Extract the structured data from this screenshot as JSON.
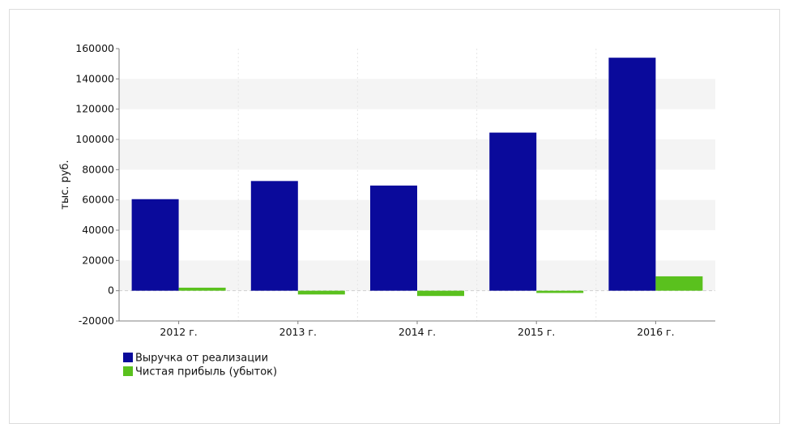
{
  "chart_data": {
    "type": "bar",
    "categories": [
      "2012 г.",
      "2013 г.",
      "2014 г.",
      "2015 г.",
      "2016 г."
    ],
    "series": [
      {
        "name": "Выручка от реализации",
        "values": [
          60500,
          72500,
          69500,
          104500,
          154000
        ],
        "color": "#0a0a9b"
      },
      {
        "name": "Чистая прибыль (убыток)",
        "values": [
          2000,
          -2500,
          -3500,
          -1500,
          9500
        ],
        "color": "#5ac11e"
      }
    ],
    "ylabel": "тыс. руб.",
    "ylim": [
      -20000,
      160000
    ],
    "yticks": [
      -20000,
      0,
      20000,
      40000,
      60000,
      80000,
      100000,
      120000,
      140000,
      160000
    ],
    "grid": "horizontal alternating bands",
    "legend": "bottom-left"
  }
}
